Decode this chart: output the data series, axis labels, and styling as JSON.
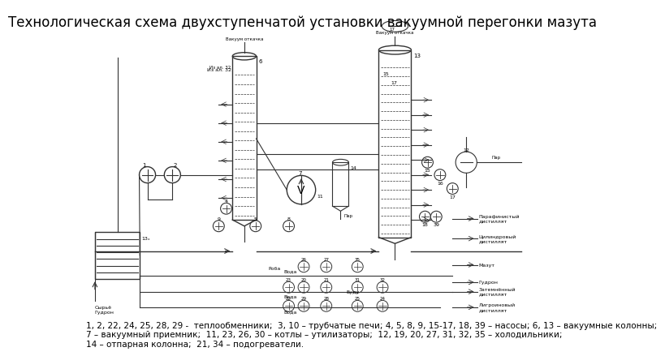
{
  "title": "Технологическая схема двухступенчатой установки вакуумной перегонки мазута",
  "title_fontsize": 12,
  "legend_text": "1, 2, 22, 24, 25, 28, 29 -  теплообменники;  3, 10 – трубчатые печи; 4, 5, 8, 9, 15-17, 18, 39 – насосы; 6, 13 – вакуумные колонны;\n7 – вакуумный приемник;  11, 23, 26, 30 – котлы – утилизаторы;  12, 19, 20, 27, 31, 32, 35 – холодильники;\n14 – отпарная колонна;  21, 34 – подогреватели.",
  "legend_fontsize": 7.5,
  "bg_color": "#ffffff",
  "line_color": "#333333"
}
